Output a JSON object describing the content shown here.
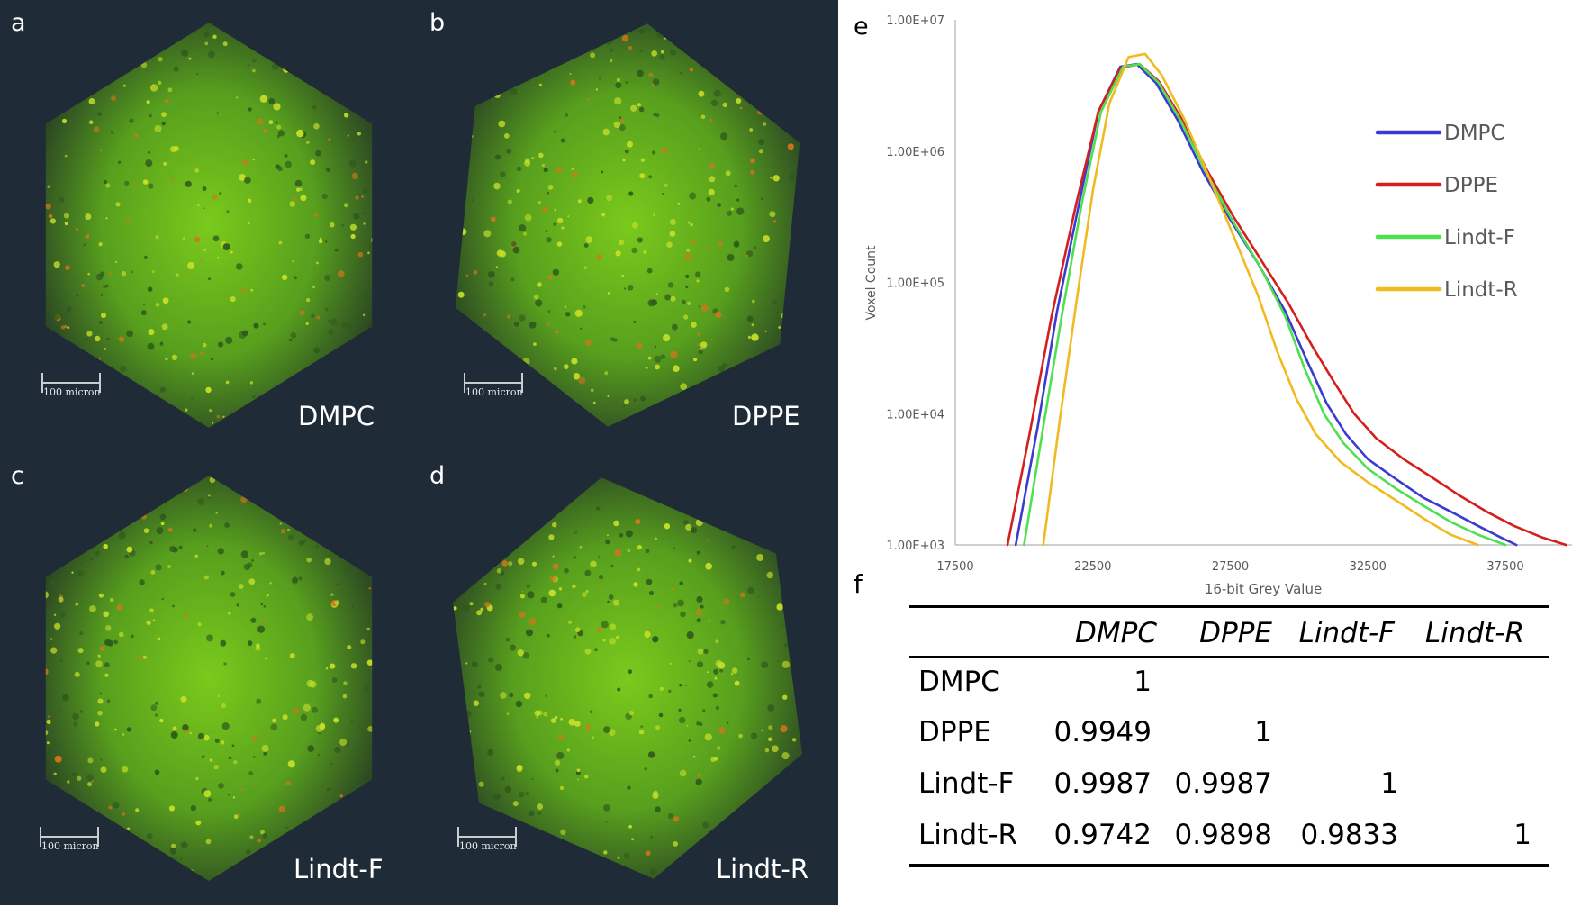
{
  "figure": {
    "panels": [
      {
        "letter": "a",
        "sample": "DMPC",
        "scale_bar": "100 micron"
      },
      {
        "letter": "b",
        "sample": "DPPE",
        "scale_bar": "100 micron"
      },
      {
        "letter": "c",
        "sample": "Lindt-F",
        "scale_bar": "100 micron"
      },
      {
        "letter": "d",
        "sample": "Lindt-R",
        "scale_bar": "100 micron"
      }
    ],
    "background_color": "#1f2b36"
  },
  "chart_data": {
    "type": "line",
    "panel_letter": "e",
    "title": "",
    "xlabel": "16-bit Grey Value",
    "ylabel": "Voxel Count",
    "yscale": "log",
    "xlim": [
      17500,
      40000
    ],
    "ylim": [
      1000,
      10000000
    ],
    "x_ticks": [
      17500,
      22500,
      27500,
      32500,
      37500
    ],
    "x_tick_labels": [
      "17500",
      "22500",
      "27500",
      "32500",
      "37500"
    ],
    "y_ticks": [
      1000,
      10000,
      100000,
      1000000,
      10000000
    ],
    "y_tick_labels": [
      "1.00E+03",
      "1.00E+04",
      "1.00E+05",
      "1.00E+06",
      "1.00E+07"
    ],
    "grid": false,
    "legend_position": "right",
    "series": [
      {
        "name": "DMPC",
        "color": "#3b3bd0",
        "points": [
          [
            19700,
            1000
          ],
          [
            20500,
            8000
          ],
          [
            21200,
            60000
          ],
          [
            22000,
            400000
          ],
          [
            22700,
            2000000
          ],
          [
            23500,
            4400000
          ],
          [
            24100,
            4600000
          ],
          [
            24800,
            3300000
          ],
          [
            25600,
            1700000
          ],
          [
            26500,
            700000
          ],
          [
            27500,
            300000
          ],
          [
            28500,
            140000
          ],
          [
            29500,
            60000
          ],
          [
            30300,
            25000
          ],
          [
            31000,
            12000
          ],
          [
            31700,
            7000
          ],
          [
            32500,
            4500
          ],
          [
            33500,
            3200
          ],
          [
            34500,
            2300
          ],
          [
            35500,
            1800
          ],
          [
            36500,
            1400
          ],
          [
            37300,
            1150
          ],
          [
            37900,
            1000
          ]
        ]
      },
      {
        "name": "DPPE",
        "color": "#d41f1f",
        "points": [
          [
            19400,
            1000
          ],
          [
            20200,
            7000
          ],
          [
            21000,
            55000
          ],
          [
            21900,
            400000
          ],
          [
            22700,
            2000000
          ],
          [
            23500,
            4300000
          ],
          [
            24200,
            4600000
          ],
          [
            24900,
            3400000
          ],
          [
            25700,
            1800000
          ],
          [
            26600,
            750000
          ],
          [
            27600,
            320000
          ],
          [
            28600,
            150000
          ],
          [
            29600,
            70000
          ],
          [
            30500,
            32000
          ],
          [
            31300,
            17000
          ],
          [
            32000,
            10000
          ],
          [
            32800,
            6500
          ],
          [
            33800,
            4500
          ],
          [
            34800,
            3300
          ],
          [
            35800,
            2400
          ],
          [
            36800,
            1800
          ],
          [
            37800,
            1400
          ],
          [
            38800,
            1150
          ],
          [
            39700,
            1000
          ]
        ]
      },
      {
        "name": "Lindt-F",
        "color": "#4fe04f",
        "points": [
          [
            20000,
            1000
          ],
          [
            20700,
            8000
          ],
          [
            21400,
            60000
          ],
          [
            22100,
            400000
          ],
          [
            22800,
            2000000
          ],
          [
            23600,
            4400000
          ],
          [
            24200,
            4600000
          ],
          [
            24900,
            3300000
          ],
          [
            25700,
            1700000
          ],
          [
            26600,
            700000
          ],
          [
            27600,
            290000
          ],
          [
            28600,
            130000
          ],
          [
            29500,
            55000
          ],
          [
            30200,
            22000
          ],
          [
            30900,
            10000
          ],
          [
            31600,
            6000
          ],
          [
            32500,
            3800
          ],
          [
            33500,
            2700
          ],
          [
            34500,
            2000
          ],
          [
            35500,
            1500
          ],
          [
            36500,
            1200
          ],
          [
            37500,
            1000
          ]
        ]
      },
      {
        "name": "Lindt-R",
        "color": "#f0bb20",
        "points": [
          [
            20700,
            1000
          ],
          [
            21300,
            9000
          ],
          [
            21900,
            70000
          ],
          [
            22500,
            500000
          ],
          [
            23100,
            2300000
          ],
          [
            23800,
            5200000
          ],
          [
            24400,
            5500000
          ],
          [
            25000,
            3800000
          ],
          [
            25800,
            1800000
          ],
          [
            26700,
            650000
          ],
          [
            27600,
            230000
          ],
          [
            28500,
            80000
          ],
          [
            29200,
            30000
          ],
          [
            29900,
            13000
          ],
          [
            30600,
            7000
          ],
          [
            31500,
            4300
          ],
          [
            32500,
            3000
          ],
          [
            33500,
            2200
          ],
          [
            34500,
            1600
          ],
          [
            35500,
            1200
          ],
          [
            36500,
            1000
          ]
        ]
      }
    ]
  },
  "table": {
    "panel_letter": "f",
    "columns": [
      "DMPC",
      "DPPE",
      "Lindt-F",
      "Lindt-R"
    ],
    "rows": [
      {
        "label": "DMPC",
        "values": [
          "1",
          "",
          "",
          ""
        ]
      },
      {
        "label": "DPPE",
        "values": [
          "0.9949",
          "1",
          "",
          ""
        ]
      },
      {
        "label": "Lindt-F",
        "values": [
          "0.9987",
          "0.9987",
          "1",
          ""
        ]
      },
      {
        "label": "Lindt-R",
        "values": [
          "0.9742",
          "0.9898",
          "0.9833",
          "1"
        ]
      }
    ]
  }
}
